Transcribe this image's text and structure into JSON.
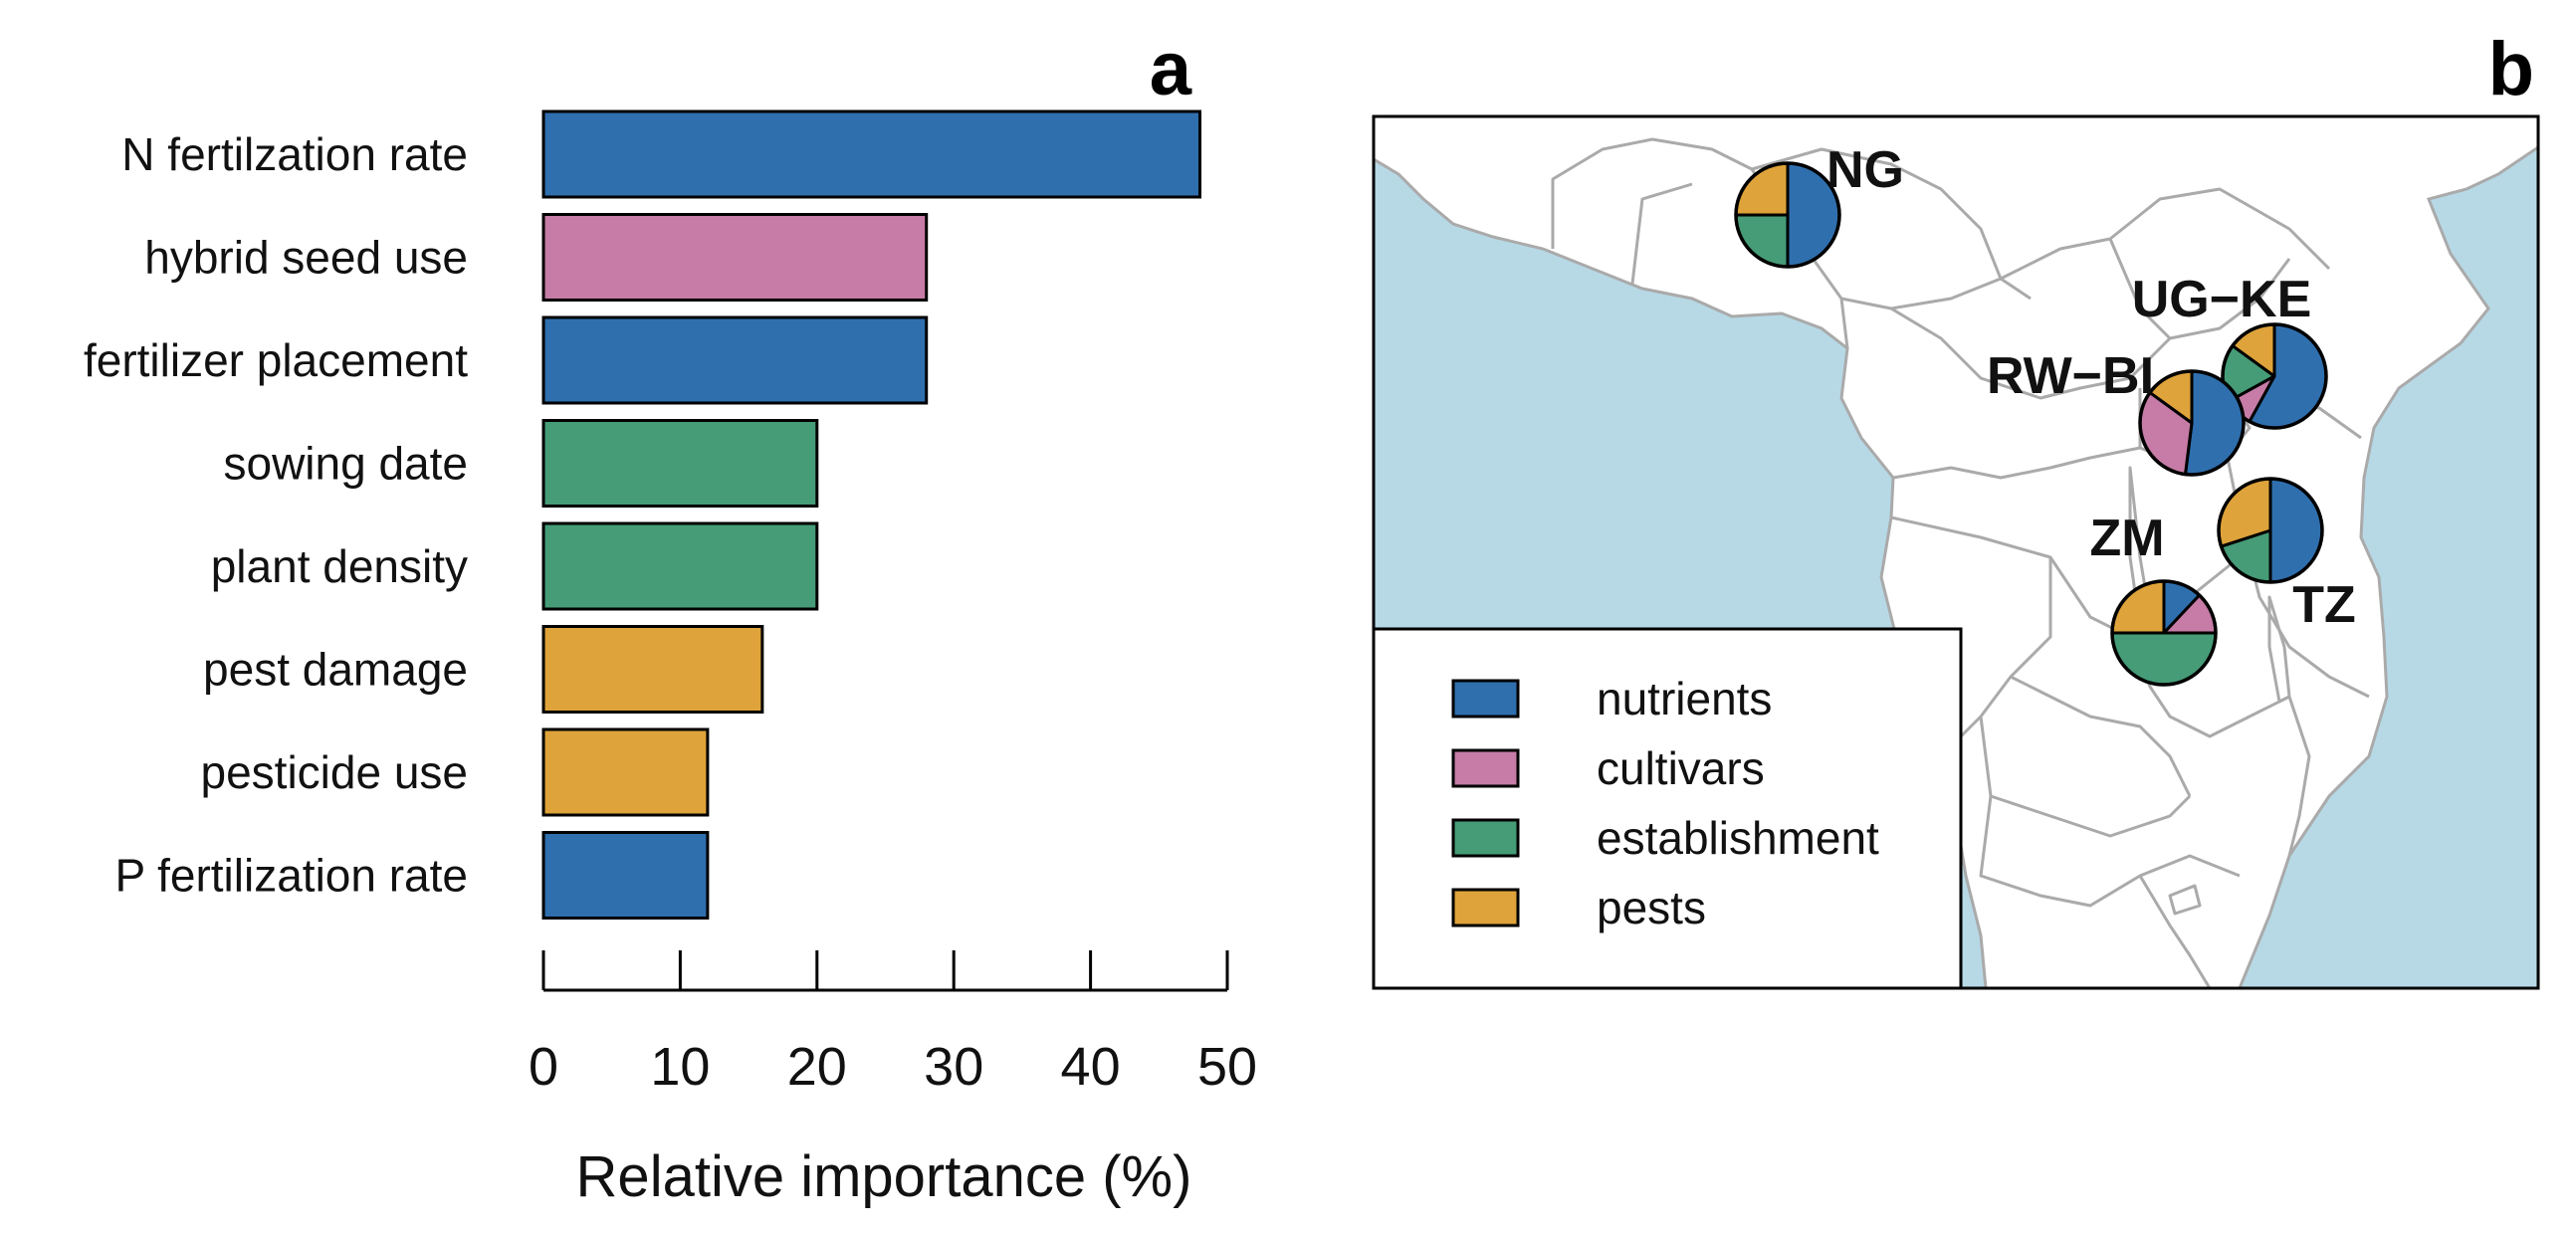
{
  "panel_a": {
    "letter": "a"
  },
  "panel_b": {
    "letter": "b"
  },
  "colors": {
    "nutrients": "#2f6fae",
    "cultivars": "#c67ca6",
    "establishment": "#459c77",
    "pests": "#dea33a",
    "ocean": "#b7d9e6",
    "land": "#ffffff",
    "borders": "#aaaaaa"
  },
  "chart_data": [
    {
      "type": "bar",
      "orientation": "horizontal",
      "categories": [
        "N fertilzation rate",
        "hybrid seed use",
        "fertilizer placement",
        "sowing date",
        "plant density",
        "pest damage",
        "pesticide use",
        "P fertilization rate"
      ],
      "values": [
        48,
        28,
        28,
        20,
        20,
        16,
        12,
        12
      ],
      "groups": [
        "nutrients",
        "cultivars",
        "nutrients",
        "establishment",
        "establishment",
        "pests",
        "pests",
        "nutrients"
      ],
      "xlabel": "Relative importance (%)",
      "xlim": [
        0,
        50
      ],
      "xticks": [
        "0",
        "10",
        "20",
        "30",
        "40",
        "50"
      ],
      "grid": false
    },
    {
      "type": "pie",
      "map": "East/Central/West Africa",
      "series_names": [
        "nutrients",
        "cultivars",
        "establishment",
        "pests"
      ],
      "sites": [
        {
          "label": "NG",
          "values": [
            50,
            0,
            25,
            25
          ]
        },
        {
          "label": "UG−KE",
          "values": [
            58,
            9,
            18,
            15
          ]
        },
        {
          "label": "RW−BI",
          "values": [
            52,
            33,
            0,
            15
          ]
        },
        {
          "label": "TZ",
          "values": [
            50,
            0,
            20,
            30
          ]
        },
        {
          "label": "ZM",
          "values": [
            12,
            13,
            50,
            25
          ]
        }
      ],
      "legend": {
        "placement": "bottom-left",
        "entries": [
          "nutrients",
          "cultivars",
          "establishment",
          "pests"
        ]
      }
    }
  ]
}
